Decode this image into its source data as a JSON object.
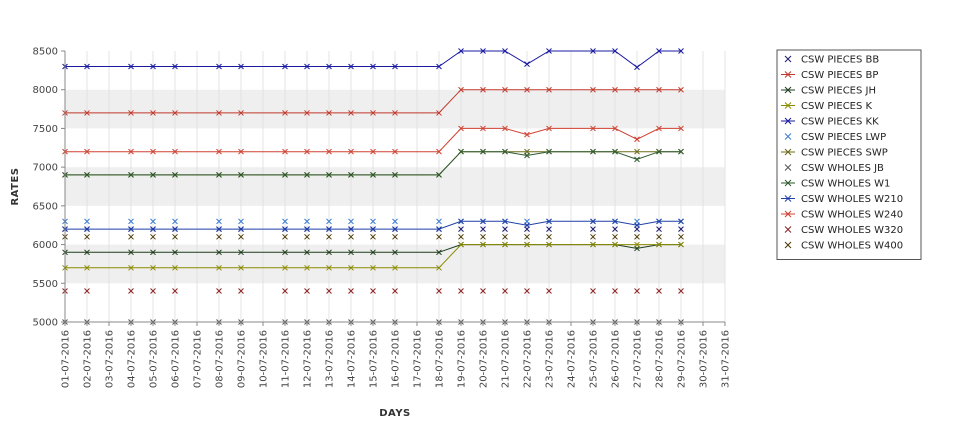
{
  "chart_data": {
    "type": "line",
    "xlabel": "DAYS",
    "ylabel": "RATES",
    "ylim": [
      5000,
      8500
    ],
    "yticks": [
      5000,
      5500,
      6000,
      6500,
      7000,
      7500,
      8000,
      8500
    ],
    "grid": "alternating horizontal bands and light vertical gridlines",
    "legend_position": "right",
    "x_labels": [
      "01-07-2016",
      "02-07-2016",
      "03-07-2016",
      "04-07-2016",
      "05-07-2016",
      "06-07-2016",
      "07-07-2016",
      "08-07-2016",
      "09-07-2016",
      "10-07-2016",
      "11-07-2016",
      "12-07-2016",
      "13-07-2016",
      "14-07-2016",
      "15-07-2016",
      "16-07-2016",
      "17-07-2016",
      "18-07-2016",
      "19-07-2016",
      "20-07-2016",
      "21-07-2016",
      "22-07-2016",
      "23-07-2016",
      "24-07-2016",
      "25-07-2016",
      "26-07-2016",
      "27-07-2016",
      "28-07-2016",
      "29-07-2016",
      "30-07-2016",
      "31-07-2016"
    ],
    "x": [
      "01-07-2016",
      "02-07-2016",
      "04-07-2016",
      "05-07-2016",
      "06-07-2016",
      "08-07-2016",
      "09-07-2016",
      "11-07-2016",
      "12-07-2016",
      "13-07-2016",
      "14-07-2016",
      "15-07-2016",
      "16-07-2016",
      "18-07-2016",
      "19-07-2016",
      "20-07-2016",
      "21-07-2016",
      "22-07-2016",
      "23-07-2016",
      "25-07-2016",
      "26-07-2016",
      "27-07-2016",
      "28-07-2016",
      "29-07-2016"
    ],
    "series": [
      {
        "name": "CSW PIECES BB",
        "color": "#1a1a6e",
        "line": false,
        "values": [
          6200,
          6200,
          6200,
          6200,
          6200,
          6200,
          6200,
          6200,
          6200,
          6200,
          6200,
          6200,
          6200,
          6200,
          6200,
          6200,
          6200,
          6200,
          6200,
          6200,
          6200,
          6200,
          6200,
          6200
        ]
      },
      {
        "name": "CSW PIECES BP",
        "color": "#c0392b",
        "line": true,
        "values": [
          7700,
          7700,
          7700,
          7700,
          7700,
          7700,
          7700,
          7700,
          7700,
          7700,
          7700,
          7700,
          7700,
          7700,
          8000,
          8000,
          8000,
          8000,
          8000,
          8000,
          8000,
          8000,
          8000,
          8000
        ]
      },
      {
        "name": "CSW PIECES JH",
        "color": "#1c3d1c",
        "line": true,
        "values": [
          5900,
          5900,
          5900,
          5900,
          5900,
          5900,
          5900,
          5900,
          5900,
          5900,
          5900,
          5900,
          5900,
          5900,
          6000,
          6000,
          6000,
          6000,
          6000,
          6000,
          6000,
          5950,
          6000,
          6000
        ]
      },
      {
        "name": "CSW PIECES K",
        "color": "#8a8a00",
        "line": true,
        "values": [
          5700,
          5700,
          5700,
          5700,
          5700,
          5700,
          5700,
          5700,
          5700,
          5700,
          5700,
          5700,
          5700,
          5700,
          6000,
          6000,
          6000,
          6000,
          6000,
          6000,
          6000,
          6000,
          6000,
          6000
        ]
      },
      {
        "name": "CSW PIECES KK",
        "color": "#1a1aa0",
        "line": true,
        "values": [
          8300,
          8300,
          8300,
          8300,
          8300,
          8300,
          8300,
          8300,
          8300,
          8300,
          8300,
          8300,
          8300,
          8300,
          8500,
          8500,
          8500,
          8330,
          8500,
          8500,
          8500,
          8290,
          8500,
          8500
        ]
      },
      {
        "name": "CSW PIECES LWP",
        "color": "#3a7bd5",
        "line": false,
        "values": [
          6300,
          6300,
          6300,
          6300,
          6300,
          6300,
          6300,
          6300,
          6300,
          6300,
          6300,
          6300,
          6300,
          6300,
          6300,
          6300,
          6300,
          6300,
          6300,
          6300,
          6300,
          6300,
          6300,
          6300
        ]
      },
      {
        "name": "CSW PIECES SWP",
        "color": "#6b6b1a",
        "line": true,
        "values": [
          6900,
          6900,
          6900,
          6900,
          6900,
          6900,
          6900,
          6900,
          6900,
          6900,
          6900,
          6900,
          6900,
          6900,
          7200,
          7200,
          7200,
          7200,
          7200,
          7200,
          7200,
          7200,
          7200,
          7200
        ]
      },
      {
        "name": "CSW WHOLES JB",
        "color": "#555555",
        "line": false,
        "values": [
          5000,
          5000,
          5000,
          5000,
          5000,
          5000,
          5000,
          5000,
          5000,
          5000,
          5000,
          5000,
          5000,
          5000,
          5000,
          5000,
          5000,
          5000,
          5000,
          5000,
          5000,
          5000,
          5000,
          5000
        ]
      },
      {
        "name": "CSW WHOLES W1",
        "color": "#2e5a2e",
        "line": true,
        "values": [
          6900,
          6900,
          6900,
          6900,
          6900,
          6900,
          6900,
          6900,
          6900,
          6900,
          6900,
          6900,
          6900,
          6900,
          7200,
          7200,
          7200,
          7150,
          7200,
          7200,
          7200,
          7100,
          7200,
          7200
        ]
      },
      {
        "name": "CSW WHOLES W210",
        "color": "#1f3fa8",
        "line": true,
        "values": [
          6200,
          6200,
          6200,
          6200,
          6200,
          6200,
          6200,
          6200,
          6200,
          6200,
          6200,
          6200,
          6200,
          6200,
          6300,
          6300,
          6300,
          6250,
          6300,
          6300,
          6300,
          6250,
          6300,
          6300
        ]
      },
      {
        "name": "CSW WHOLES W240",
        "color": "#d04030",
        "line": true,
        "values": [
          7200,
          7200,
          7200,
          7200,
          7200,
          7200,
          7200,
          7200,
          7200,
          7200,
          7200,
          7200,
          7200,
          7200,
          7500,
          7500,
          7500,
          7420,
          7500,
          7500,
          7500,
          7360,
          7500,
          7500
        ]
      },
      {
        "name": "CSW WHOLES W320",
        "color": "#8b2222",
        "line": false,
        "values": [
          5400,
          5400,
          5400,
          5400,
          5400,
          5400,
          5400,
          5400,
          5400,
          5400,
          5400,
          5400,
          5400,
          5400,
          5400,
          5400,
          5400,
          5400,
          5400,
          5400,
          5400,
          5400,
          5400,
          5400
        ]
      },
      {
        "name": "CSW WHOLES W400",
        "color": "#4a3a00",
        "line": false,
        "values": [
          6100,
          6100,
          6100,
          6100,
          6100,
          6100,
          6100,
          6100,
          6100,
          6100,
          6100,
          6100,
          6100,
          6100,
          6100,
          6100,
          6100,
          6100,
          6100,
          6100,
          6100,
          6100,
          6100,
          6100
        ]
      }
    ]
  }
}
